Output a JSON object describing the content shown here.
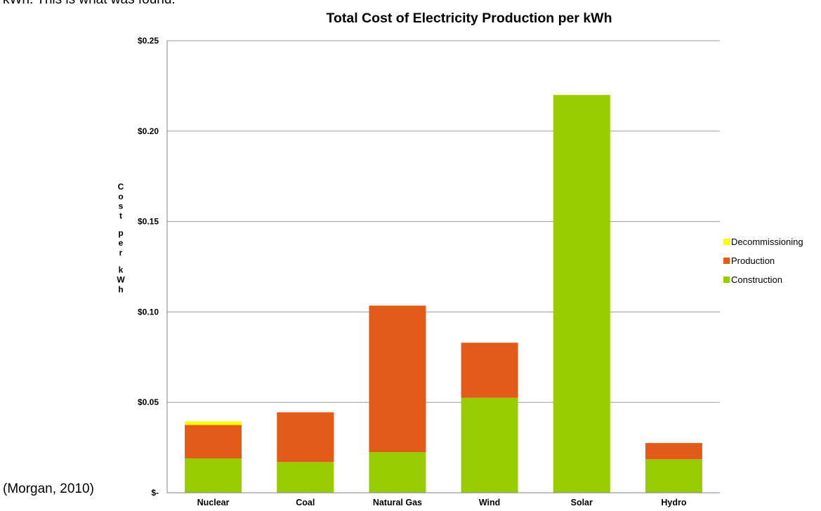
{
  "document": {
    "intro_fragment": "kWh.  This is what was found:",
    "citation": "(Morgan, 2010)"
  },
  "colors": {
    "decommissioning": "#ffff00",
    "production": "#e35b19",
    "construction": "#99cc00",
    "gridline": "#999999",
    "axis": "#808080"
  },
  "chart_data": {
    "type": "bar",
    "stacked": true,
    "title": "Total Cost of Electricity Production per kWh",
    "ylabel": "Cost per kWh",
    "ylim": [
      0,
      0.25
    ],
    "yticks": [
      0,
      0.05,
      0.1,
      0.15,
      0.2,
      0.25
    ],
    "ytick_labels": [
      "$-",
      "$0.05",
      "$0.10",
      "$0.15",
      "$0.20",
      "$0.25"
    ],
    "grid": true,
    "legend_position": "right",
    "categories": [
      "Nuclear",
      "Coal",
      "Natural Gas",
      "Wind",
      "Solar",
      "Hydro"
    ],
    "series": [
      {
        "name": "Construction",
        "color": "#99cc00",
        "values": [
          0.019,
          0.017,
          0.0225,
          0.0525,
          0.22,
          0.0185
        ]
      },
      {
        "name": "Production",
        "color": "#e35b19",
        "values": [
          0.0185,
          0.0275,
          0.081,
          0.0305,
          0,
          0.009
        ]
      },
      {
        "name": "Decommissioning",
        "color": "#ffff00",
        "values": [
          0.002,
          0,
          0,
          0,
          0,
          0
        ]
      }
    ],
    "legend_order": [
      "Decommissioning",
      "Production",
      "Construction"
    ]
  }
}
